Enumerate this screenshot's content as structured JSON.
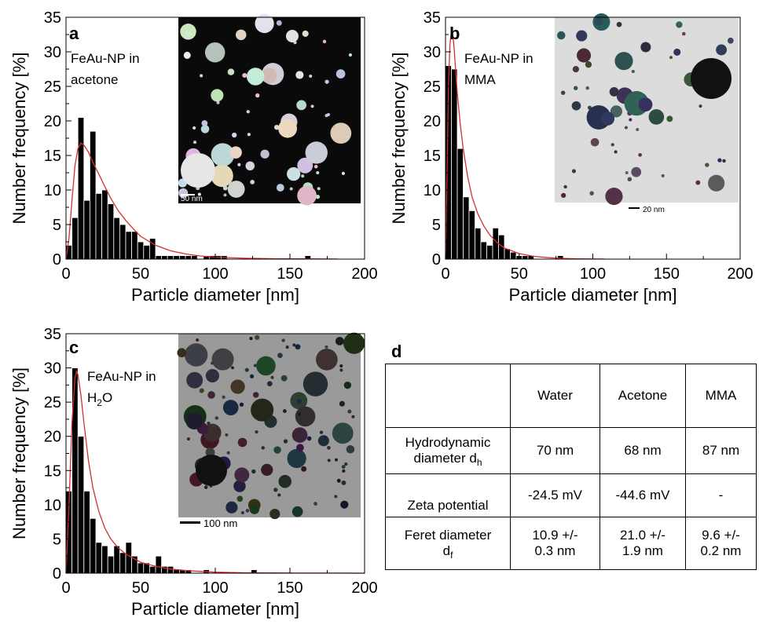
{
  "chart_data": [
    {
      "type": "bar",
      "panel": "a",
      "annotation": [
        "FeAu-NP in",
        "acetone"
      ],
      "xlabel": "Particle diameter [nm]",
      "ylabel": "Number frequency [%]",
      "xlim": [
        0,
        200
      ],
      "ylim": [
        0,
        35
      ],
      "xticks": [
        0,
        50,
        100,
        150,
        200
      ],
      "yticks": [
        0,
        5,
        10,
        15,
        20,
        25,
        30,
        35
      ],
      "bin_width": 4,
      "bin_starts": [
        0,
        4,
        8,
        12,
        16,
        20,
        24,
        28,
        32,
        36,
        40,
        44,
        48,
        52,
        56,
        60,
        64,
        68,
        72,
        76,
        80,
        84,
        88,
        92,
        96,
        100,
        104,
        108,
        112,
        116,
        120,
        124,
        128,
        132,
        136,
        140,
        144,
        148,
        152,
        156,
        160,
        164,
        168,
        172,
        176
      ],
      "values": [
        2,
        6,
        20.5,
        8.5,
        18.5,
        9.5,
        10,
        8,
        6,
        5,
        4,
        4,
        2.5,
        2,
        3,
        0.5,
        0.5,
        0.5,
        0.5,
        0.5,
        0.5,
        0.5,
        0,
        0.5,
        0.5,
        0.5,
        0.5,
        0,
        0,
        0,
        0,
        0,
        0,
        0,
        0,
        0,
        0,
        0,
        0,
        0,
        0.5,
        0,
        0,
        0,
        0
      ],
      "fit_curve": {
        "x": [
          0,
          2,
          4,
          6,
          8,
          10,
          12,
          15,
          18,
          22,
          26,
          30,
          35,
          40,
          45,
          50,
          60,
          70,
          80,
          90,
          100,
          120,
          140,
          160,
          182
        ],
        "y": [
          0,
          3,
          8.5,
          13.5,
          16,
          16.8,
          16.5,
          15.5,
          14,
          12.3,
          10.5,
          8.8,
          7,
          5.6,
          4.4,
          3.3,
          2,
          1.2,
          0.75,
          0.45,
          0.28,
          0.13,
          0.06,
          0.03,
          0.01
        ]
      },
      "inset": {
        "scale_label": "50 nm",
        "style": "dark"
      }
    },
    {
      "type": "bar",
      "panel": "b",
      "annotation": [
        "FeAu-NP in",
        "MMA"
      ],
      "xlabel": "Particle diameter [nm]",
      "ylabel": "Number frequency [%]",
      "xlim": [
        0,
        200
      ],
      "ylim": [
        0,
        35
      ],
      "xticks": [
        0,
        50,
        100,
        150,
        200
      ],
      "yticks": [
        0,
        5,
        10,
        15,
        20,
        25,
        30,
        35
      ],
      "bin_width": 4,
      "bin_starts": [
        0,
        4,
        8,
        12,
        16,
        20,
        24,
        28,
        32,
        36,
        40,
        44,
        48,
        52,
        56,
        60,
        64,
        68,
        72,
        76
      ],
      "values": [
        28,
        27.5,
        16,
        9,
        7,
        4.5,
        2.5,
        2,
        4.5,
        3.5,
        1.5,
        1,
        0.5,
        0.5,
        0.5,
        0,
        0,
        0,
        0,
        0.5
      ],
      "fit_curve": {
        "x": [
          0,
          1,
          2,
          3,
          4,
          5,
          6,
          7,
          8,
          10,
          12,
          15,
          18,
          22,
          26,
          30,
          35,
          40,
          50,
          60,
          70,
          80,
          90,
          100,
          108
        ],
        "y": [
          0,
          12,
          25,
          31,
          33,
          32.5,
          30,
          27,
          24,
          19.5,
          16,
          12,
          9,
          6.5,
          4.8,
          3.5,
          2.4,
          1.6,
          0.8,
          0.4,
          0.2,
          0.1,
          0.05,
          0.02,
          0.01
        ]
      },
      "inset": {
        "scale_label": "20 nm",
        "style": "light"
      }
    },
    {
      "type": "bar",
      "panel": "c",
      "annotation": [
        "FeAu-NP in",
        "H2O"
      ],
      "xlabel": "Particle diameter [nm]",
      "ylabel": "Number frequency [%]",
      "xlim": [
        0,
        200
      ],
      "ylim": [
        0,
        35
      ],
      "xticks": [
        0,
        50,
        100,
        150,
        200
      ],
      "yticks": [
        0,
        5,
        10,
        15,
        20,
        25,
        30,
        35
      ],
      "bin_width": 4,
      "bin_starts": [
        0,
        4,
        8,
        12,
        16,
        20,
        24,
        28,
        32,
        36,
        40,
        44,
        48,
        52,
        56,
        60,
        64,
        68,
        72,
        76,
        80,
        84,
        88,
        92,
        96,
        100,
        104,
        108,
        112,
        116,
        120,
        124
      ],
      "values": [
        12,
        30,
        20,
        12,
        8,
        4.5,
        4,
        2.5,
        4,
        3,
        4.5,
        2.5,
        1.5,
        1.5,
        1,
        2.5,
        1,
        1,
        0.5,
        0.5,
        0.5,
        0,
        0,
        0.5,
        0,
        0,
        0,
        0,
        0,
        0,
        0,
        0.5
      ],
      "fit_curve": {
        "x": [
          0,
          2,
          4,
          6,
          7,
          8,
          10,
          12,
          15,
          18,
          22,
          26,
          30,
          35,
          40,
          50,
          60,
          70,
          80,
          90,
          100,
          120,
          140,
          160,
          180,
          200
        ],
        "y": [
          0,
          10,
          22,
          28.5,
          29.5,
          29,
          26,
          22,
          16.5,
          12.5,
          9,
          6.6,
          5,
          3.7,
          2.8,
          1.6,
          1,
          0.6,
          0.4,
          0.25,
          0.15,
          0.06,
          0.03,
          0.015,
          0.008,
          0.004
        ]
      },
      "inset": {
        "scale_label": "100 nm",
        "style": "mid"
      }
    }
  ],
  "table_panel": {
    "letter": "d",
    "header": [
      "",
      "Water",
      "Acetone",
      "MMA"
    ],
    "rows": [
      {
        "label": "Hydrodynamic diameter d",
        "label_main": "Hydrodynamic",
        "label_second": "diameter d",
        "label_sub": "h",
        "values": [
          "70 nm",
          "68 nm",
          "87 nm"
        ]
      },
      {
        "label": "Zeta potential",
        "values": [
          "-24.5 mV",
          "-44.6 mV",
          "-"
        ]
      },
      {
        "label": "Feret diameter d",
        "label_main": "Feret diameter",
        "label_second": "d",
        "label_sub": "f",
        "values": [
          [
            "10.9 +/-",
            "0.3 nm"
          ],
          [
            "21.0 +/-",
            "1.9 nm"
          ],
          [
            "9.6 +/-",
            "0.2 nm"
          ]
        ]
      }
    ]
  },
  "colors": {
    "bar": "#000000",
    "bar_edge": "#ffffff",
    "fit": "#d62d2d",
    "axis": "#000000"
  }
}
